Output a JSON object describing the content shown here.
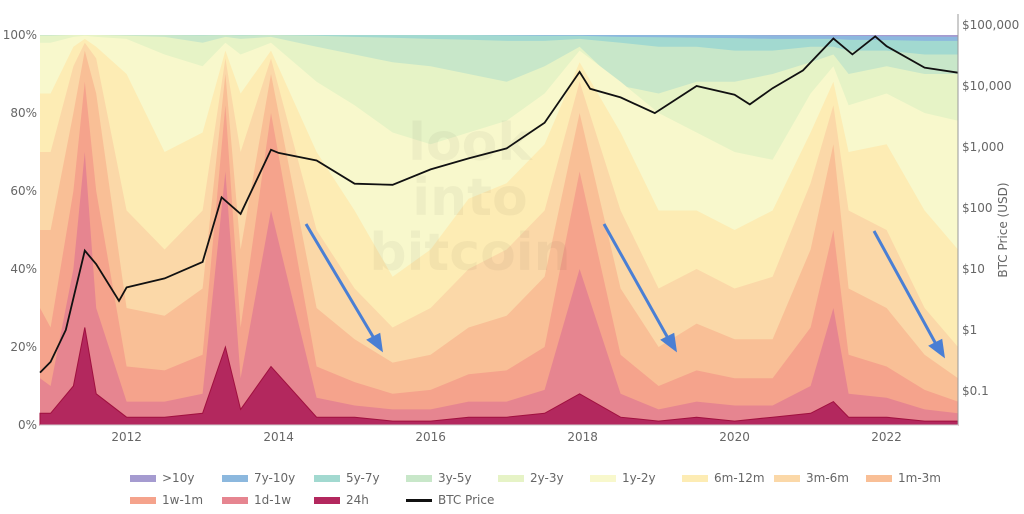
{
  "chart_data": {
    "type": "area",
    "stacked": true,
    "watermark": "look into bitcoin",
    "x_ticks": [
      "2012",
      "2014",
      "2016",
      "2018",
      "2020",
      "2022"
    ],
    "xlim": [
      2010.86,
      2022.94
    ],
    "y_left": {
      "ticks": [
        "0%",
        "20%",
        "40%",
        "60%",
        "80%",
        "100%"
      ],
      "ylim": [
        0,
        100
      ]
    },
    "y_right": {
      "label": "BTC Price (USD)",
      "scale": "log",
      "ticks": [
        "$0.1",
        "$1",
        "$10",
        "$100",
        "$1,000",
        "$10,000",
        "$100,000"
      ],
      "ylim": [
        0.1,
        100000
      ]
    },
    "grid": false,
    "legend_position": "bottom",
    "x": [
      2010.86,
      2011.0,
      2011.3,
      2011.45,
      2011.6,
      2012.0,
      2012.5,
      2013.0,
      2013.3,
      2013.5,
      2013.9,
      2014.5,
      2015.0,
      2015.5,
      2016.0,
      2016.5,
      2017.0,
      2017.5,
      2017.96,
      2018.5,
      2019.0,
      2019.5,
      2020.0,
      2020.5,
      2021.0,
      2021.3,
      2021.5,
      2022.0,
      2022.5,
      2022.94
    ],
    "series_cumulative_pct": [
      {
        "name": "24h",
        "color": "#b3285e",
        "values": [
          3,
          3,
          10,
          25,
          8,
          2,
          2,
          3,
          20,
          4,
          15,
          2,
          2,
          1,
          1,
          2,
          2,
          3,
          8,
          2,
          1,
          2,
          1,
          2,
          3,
          6,
          2,
          2,
          1,
          1
        ]
      },
      {
        "name": "1d-1w",
        "color": "#e68590",
        "values": [
          12,
          10,
          40,
          70,
          30,
          6,
          6,
          8,
          65,
          12,
          55,
          7,
          5,
          4,
          4,
          6,
          6,
          9,
          40,
          8,
          4,
          6,
          5,
          5,
          10,
          30,
          8,
          7,
          4,
          3
        ]
      },
      {
        "name": "1w-1m",
        "color": "#f5a38c",
        "values": [
          30,
          25,
          60,
          88,
          60,
          15,
          14,
          18,
          82,
          25,
          80,
          15,
          11,
          8,
          9,
          13,
          14,
          20,
          65,
          18,
          10,
          14,
          12,
          12,
          25,
          50,
          18,
          15,
          9,
          6
        ]
      },
      {
        "name": "1m-3m",
        "color": "#f9bf96",
        "values": [
          50,
          50,
          80,
          96,
          85,
          30,
          28,
          35,
          90,
          45,
          90,
          30,
          22,
          16,
          18,
          25,
          28,
          38,
          80,
          35,
          20,
          26,
          22,
          22,
          45,
          72,
          35,
          30,
          18,
          12
        ]
      },
      {
        "name": "3m-6m",
        "color": "#fbd8a8",
        "values": [
          70,
          70,
          92,
          98,
          94,
          55,
          45,
          55,
          94,
          70,
          94,
          50,
          35,
          25,
          30,
          40,
          45,
          55,
          88,
          55,
          35,
          40,
          35,
          38,
          62,
          82,
          55,
          50,
          30,
          20
        ]
      },
      {
        "name": "6m-12m",
        "color": "#fdecb4",
        "values": [
          85,
          85,
          97,
          99,
          97,
          90,
          70,
          75,
          96,
          85,
          96,
          70,
          55,
          38,
          45,
          58,
          62,
          72,
          93,
          75,
          55,
          55,
          50,
          55,
          75,
          88,
          70,
          72,
          55,
          45
        ]
      },
      {
        "name": "1y-2y",
        "color": "#f8f8cc",
        "values": [
          98,
          98,
          99.5,
          99.8,
          99.5,
          99,
          95,
          92,
          98,
          95,
          98,
          88,
          82,
          75,
          72,
          75,
          78,
          85,
          96,
          88,
          80,
          75,
          70,
          68,
          85,
          92,
          82,
          85,
          80,
          78
        ]
      },
      {
        "name": "2y-3y",
        "color": "#e6f3c6",
        "values": [
          99.8,
          99.8,
          100,
          100,
          100,
          99.8,
          99.5,
          98,
          99.5,
          99,
          99.5,
          97,
          95,
          93,
          92,
          90,
          88,
          92,
          97,
          87,
          85,
          88,
          88,
          90,
          93,
          95,
          90,
          92,
          90,
          90
        ]
      },
      {
        "name": "3y-5y",
        "color": "#c8e7c9",
        "values": [
          100,
          100,
          100,
          100,
          100,
          100,
          100,
          99.9,
          100,
          99.9,
          100,
          99.8,
          99.5,
          99.3,
          99,
          98.8,
          98.5,
          98.5,
          99,
          98,
          97,
          97,
          96,
          96,
          97,
          97,
          96,
          96,
          95,
          95
        ]
      },
      {
        "name": "5y-7y",
        "color": "#a2d9d0",
        "values": [
          100,
          100,
          100,
          100,
          100,
          100,
          100,
          100,
          100,
          100,
          100,
          100,
          100,
          100,
          100,
          100,
          99.9,
          99.8,
          99.8,
          99.5,
          99.4,
          99.3,
          99.2,
          99,
          99,
          99,
          98.8,
          98.7,
          98.5,
          98.5
        ]
      },
      {
        "name": "7y-10y",
        "color": "#8cb8de",
        "values": [
          100,
          100,
          100,
          100,
          100,
          100,
          100,
          100,
          100,
          100,
          100,
          100,
          100,
          100,
          100,
          100,
          100,
          100,
          100,
          100,
          100,
          100,
          100,
          99.9,
          99.9,
          99.8,
          99.8,
          99.7,
          99.6,
          99.5
        ]
      },
      {
        "name": ">10y",
        "color": "#a59bd0",
        "values": [
          100,
          100,
          100,
          100,
          100,
          100,
          100,
          100,
          100,
          100,
          100,
          100,
          100,
          100,
          100,
          100,
          100,
          100,
          100,
          100,
          100,
          100,
          100,
          100,
          100,
          100,
          100,
          100,
          100,
          100
        ]
      }
    ],
    "price": {
      "name": "BTC Price",
      "color": "#111111",
      "x": [
        2010.86,
        2011.0,
        2011.2,
        2011.45,
        2011.6,
        2011.9,
        2012.0,
        2012.5,
        2013.0,
        2013.25,
        2013.5,
        2013.9,
        2014.0,
        2014.5,
        2015.0,
        2015.5,
        2016.0,
        2016.5,
        2017.0,
        2017.5,
        2017.96,
        2018.1,
        2018.5,
        2018.95,
        2019.5,
        2020.0,
        2020.2,
        2020.5,
        2020.9,
        2021.3,
        2021.55,
        2021.85,
        2022.0,
        2022.5,
        2022.94
      ],
      "values": [
        0.2,
        0.3,
        1,
        20,
        12,
        3,
        5,
        7,
        13,
        150,
        80,
        900,
        800,
        600,
        250,
        240,
        430,
        650,
        950,
        2500,
        17000,
        9000,
        6500,
        3600,
        10000,
        7200,
        5000,
        9200,
        18000,
        60000,
        33000,
        65000,
        45000,
        20000,
        16500
      ]
    },
    "annotations": [
      "downtrend-arrow",
      "downtrend-arrow",
      "downtrend-arrow"
    ],
    "legend": [
      ">10y",
      "7y-10y",
      "5y-7y",
      "3y-5y",
      "2y-3y",
      "1y-2y",
      "6m-12m",
      "3m-6m",
      "1m-3m",
      "1w-1m",
      "1d-1w",
      "24h",
      "BTC Price"
    ]
  }
}
